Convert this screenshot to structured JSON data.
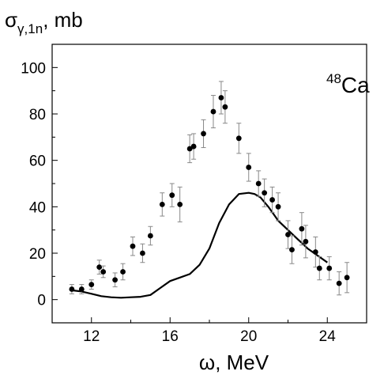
{
  "chart_data": {
    "type": "scatter",
    "ylabel": {
      "symbol": "σ",
      "sub": "γ,1n",
      "unit": ", mb"
    },
    "xlabel": {
      "symbol": "ω",
      "unit": ", MeV"
    },
    "annotation": {
      "sup": "48",
      "text": "Ca"
    },
    "xlim": [
      10,
      26
    ],
    "ylim": [
      -10,
      110
    ],
    "xticks": [
      12,
      16,
      20,
      24
    ],
    "xtick_labels": [
      "12",
      "16",
      "20",
      "24"
    ],
    "yticks": [
      0,
      20,
      40,
      60,
      80,
      100
    ],
    "ytick_labels": [
      "0",
      "20",
      "40",
      "60",
      "80",
      "100"
    ],
    "grid": false,
    "series": [
      {
        "kind": "points_with_errorbars",
        "points": [
          {
            "x": 11.0,
            "y": 4.5,
            "err": 2.0
          },
          {
            "x": 11.5,
            "y": 4.5,
            "err": 2.0
          },
          {
            "x": 12.0,
            "y": 6.5,
            "err": 2.0
          },
          {
            "x": 12.4,
            "y": 14.0,
            "err": 3.0
          },
          {
            "x": 12.6,
            "y": 12.0,
            "err": 2.5
          },
          {
            "x": 13.2,
            "y": 8.5,
            "err": 3.0
          },
          {
            "x": 13.6,
            "y": 12.0,
            "err": 3.5
          },
          {
            "x": 14.1,
            "y": 23.0,
            "err": 4.0
          },
          {
            "x": 14.6,
            "y": 20.0,
            "err": 4.0
          },
          {
            "x": 15.0,
            "y": 27.5,
            "err": 4.0
          },
          {
            "x": 15.6,
            "y": 41.0,
            "err": 5.0
          },
          {
            "x": 16.1,
            "y": 45.0,
            "err": 5.0
          },
          {
            "x": 16.5,
            "y": 41.0,
            "err": 7.5
          },
          {
            "x": 17.0,
            "y": 65.0,
            "err": 6.0
          },
          {
            "x": 17.2,
            "y": 66.0,
            "err": 5.5
          },
          {
            "x": 17.7,
            "y": 71.5,
            "err": 6.0
          },
          {
            "x": 18.2,
            "y": 81.0,
            "err": 7.0
          },
          {
            "x": 18.6,
            "y": 87.0,
            "err": 7.0
          },
          {
            "x": 18.8,
            "y": 83.0,
            "err": 7.0
          },
          {
            "x": 19.5,
            "y": 69.5,
            "err": 6.5
          },
          {
            "x": 20.0,
            "y": 57.0,
            "err": 6.0
          },
          {
            "x": 20.5,
            "y": 50.0,
            "err": 5.5
          },
          {
            "x": 20.8,
            "y": 46.0,
            "err": 6.0
          },
          {
            "x": 21.2,
            "y": 43.0,
            "err": 5.5
          },
          {
            "x": 21.5,
            "y": 40.0,
            "err": 6.0
          },
          {
            "x": 22.0,
            "y": 28.0,
            "err": 6.0
          },
          {
            "x": 22.2,
            "y": 21.5,
            "err": 6.0
          },
          {
            "x": 22.7,
            "y": 30.5,
            "err": 7.0
          },
          {
            "x": 22.9,
            "y": 25.0,
            "err": 7.0
          },
          {
            "x": 23.4,
            "y": 20.5,
            "err": 6.5
          },
          {
            "x": 23.6,
            "y": 13.5,
            "err": 5.0
          },
          {
            "x": 24.1,
            "y": 13.5,
            "err": 5.0
          },
          {
            "x": 24.6,
            "y": 7.0,
            "err": 5.0
          },
          {
            "x": 25.0,
            "y": 9.5,
            "err": 6.5
          }
        ]
      },
      {
        "kind": "line",
        "x": [
          11.0,
          11.5,
          12.0,
          12.5,
          13.0,
          13.5,
          14.0,
          14.5,
          15.0,
          15.5,
          16.0,
          16.5,
          17.0,
          17.5,
          18.0,
          18.5,
          19.0,
          19.5,
          20.0,
          20.3,
          20.6,
          21.0,
          21.5,
          22.0,
          22.5,
          23.0,
          23.5,
          24.0
        ],
        "y": [
          4.0,
          3.5,
          2.5,
          1.5,
          1.0,
          0.8,
          1.0,
          1.2,
          2.0,
          5.0,
          8.0,
          9.5,
          11.0,
          15.0,
          22.0,
          33.0,
          41.0,
          45.5,
          46.0,
          45.5,
          44.0,
          40.0,
          34.0,
          30.0,
          26.0,
          22.0,
          19.0,
          16.0
        ]
      }
    ]
  }
}
